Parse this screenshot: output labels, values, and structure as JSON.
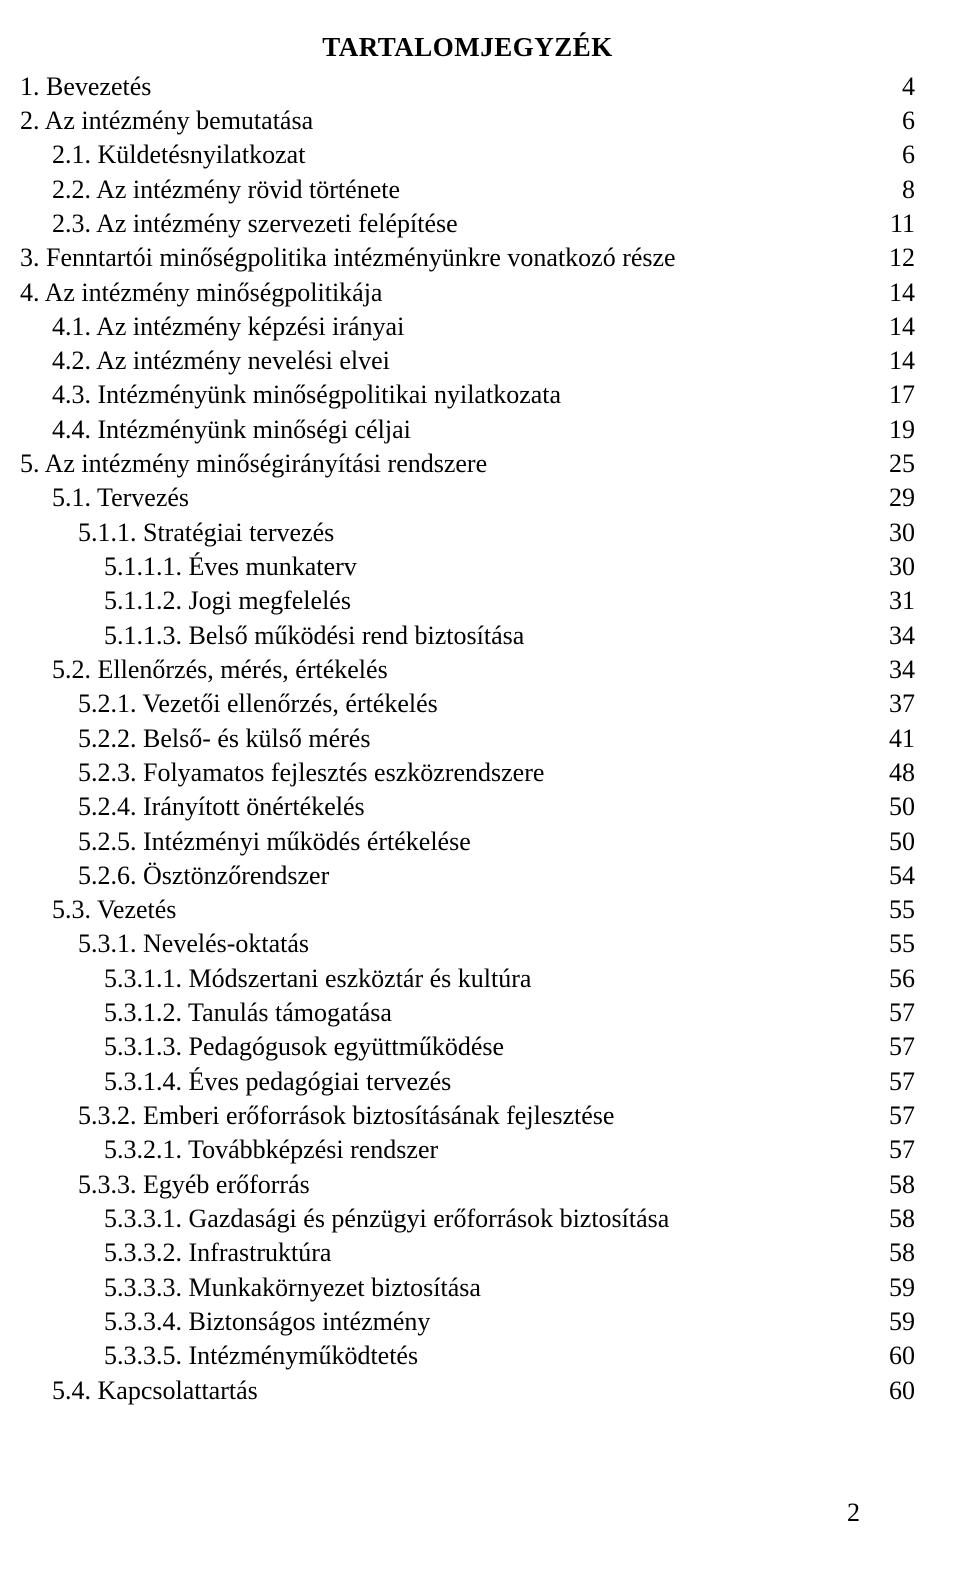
{
  "title": "TARTALOMJEGYZÉK",
  "page_footer": "2",
  "entries": [
    {
      "label": "1. Bevezetés",
      "page": "4",
      "indent": 0
    },
    {
      "label": "2. Az intézmény bemutatása",
      "page": "6",
      "indent": 0
    },
    {
      "label": "2.1. Küldetésnyilatkozat",
      "page": "6",
      "indent": 1
    },
    {
      "label": "2.2. Az intézmény rövid története",
      "page": "8",
      "indent": 1
    },
    {
      "label": "2.3. Az intézmény szervezeti felépítése",
      "page": "11",
      "indent": 1
    },
    {
      "label": "3. Fenntartói minőségpolitika intézményünkre vonatkozó része",
      "page": "12",
      "indent": 0
    },
    {
      "label": "4. Az intézmény minőségpolitikája",
      "page": "14",
      "indent": 0
    },
    {
      "label": "4.1. Az intézmény képzési irányai",
      "page": "14",
      "indent": 1
    },
    {
      "label": "4.2. Az intézmény nevelési elvei",
      "page": "14",
      "indent": 1
    },
    {
      "label": "4.3. Intézményünk minőségpolitikai nyilatkozata",
      "page": "17",
      "indent": 1
    },
    {
      "label": "4.4. Intézményünk minőségi céljai",
      "page": "19",
      "indent": 1
    },
    {
      "label": "5. Az intézmény minőségirányítási rendszere",
      "page": "25",
      "indent": 0
    },
    {
      "label": "5.1. Tervezés",
      "page": "29",
      "indent": 1
    },
    {
      "label": "5.1.1. Stratégiai tervezés",
      "page": "30",
      "indent": 2
    },
    {
      "label": "5.1.1.1. Éves munkaterv",
      "page": "30",
      "indent": 3
    },
    {
      "label": "5.1.1.2. Jogi megfelelés",
      "page": "31",
      "indent": 3
    },
    {
      "label": "5.1.1.3. Belső működési rend biztosítása",
      "page": "34",
      "indent": 3
    },
    {
      "label": "5.2. Ellenőrzés, mérés, értékelés",
      "page": "34",
      "indent": 1
    },
    {
      "label": "5.2.1. Vezetői ellenőrzés, értékelés",
      "page": "37",
      "indent": 2
    },
    {
      "label": "5.2.2. Belső- és külső mérés",
      "page": "41",
      "indent": 2
    },
    {
      "label": "5.2.3. Folyamatos fejlesztés eszközrendszere",
      "page": "48",
      "indent": 2
    },
    {
      "label": "5.2.4. Irányított önértékelés",
      "page": "50",
      "indent": 2
    },
    {
      "label": "5.2.5. Intézményi működés értékelése",
      "page": "50",
      "indent": 2
    },
    {
      "label": "5.2.6. Ösztönzőrendszer",
      "page": "54",
      "indent": 2
    },
    {
      "label": "5.3. Vezetés",
      "page": "55",
      "indent": 1
    },
    {
      "label": "5.3.1. Nevelés-oktatás",
      "page": "55",
      "indent": 2
    },
    {
      "label": "5.3.1.1. Módszertani eszköztár és kultúra",
      "page": "56",
      "indent": 3
    },
    {
      "label": "5.3.1.2. Tanulás támogatása",
      "page": "57",
      "indent": 3
    },
    {
      "label": "5.3.1.3. Pedagógusok együttműködése",
      "page": "57",
      "indent": 3
    },
    {
      "label": "5.3.1.4. Éves pedagógiai tervezés",
      "page": "57",
      "indent": 3
    },
    {
      "label": "5.3.2. Emberi erőforrások biztosításának fejlesztése",
      "page": "57",
      "indent": 2
    },
    {
      "label": "5.3.2.1. Továbbképzési rendszer",
      "page": "57",
      "indent": 3
    },
    {
      "label": "5.3.3. Egyéb erőforrás",
      "page": "58",
      "indent": 2
    },
    {
      "label": "5.3.3.1. Gazdasági és pénzügyi erőforrások biztosítása",
      "page": "58",
      "indent": 3
    },
    {
      "label": "5.3.3.2. Infrastruktúra",
      "page": "58",
      "indent": 3
    },
    {
      "label": "5.3.3.3. Munkakörnyezet biztosítása",
      "page": "59",
      "indent": 3
    },
    {
      "label": "5.3.3.4. Biztonságos intézmény",
      "page": "59",
      "indent": 3
    },
    {
      "label": "5.3.3.5. Intézményműködtetés",
      "page": "60",
      "indent": 3
    },
    {
      "label": "5.4. Kapcsolattartás",
      "page": "60",
      "indent": 1
    }
  ]
}
